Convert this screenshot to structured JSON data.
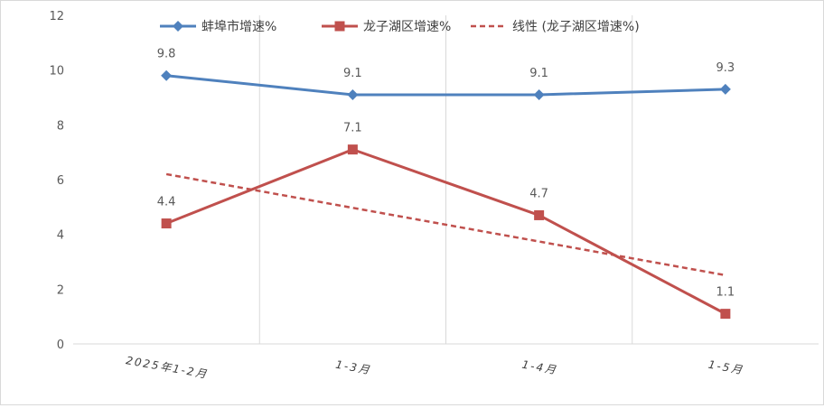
{
  "chart_data": {
    "type": "line",
    "categories": [
      "2025年1-2月",
      "1-3月",
      "1-4月",
      "1-5月"
    ],
    "series": [
      {
        "name": "蚌埠市增速%",
        "values": [
          9.8,
          9.1,
          9.1,
          9.3
        ],
        "color": "#4f81bd",
        "marker": "diamond",
        "style": "solid"
      },
      {
        "name": "龙子湖区增速%",
        "values": [
          4.4,
          7.1,
          4.7,
          1.1
        ],
        "color": "#c0504d",
        "marker": "square",
        "style": "solid"
      },
      {
        "name": "线性 (龙子湖区增速%)",
        "type": "linear-trendline",
        "of_series": "龙子湖区增速%",
        "values": [
          6.2,
          4.97,
          3.74,
          2.51
        ],
        "color": "#c0504d",
        "style": "dashed"
      }
    ],
    "y_ticks": [
      "0",
      "2",
      "4",
      "6",
      "8",
      "10",
      "12"
    ],
    "ylim": [
      0,
      12
    ],
    "data_labels": {
      "蚌埠市增速%": [
        "9.8",
        "9.1",
        "9.1",
        "9.3"
      ],
      "龙子湖区增速%": [
        "4.4",
        "7.1",
        "4.7",
        "1.1"
      ]
    },
    "grid": "vertical-category-lines",
    "legend_position": "top"
  }
}
